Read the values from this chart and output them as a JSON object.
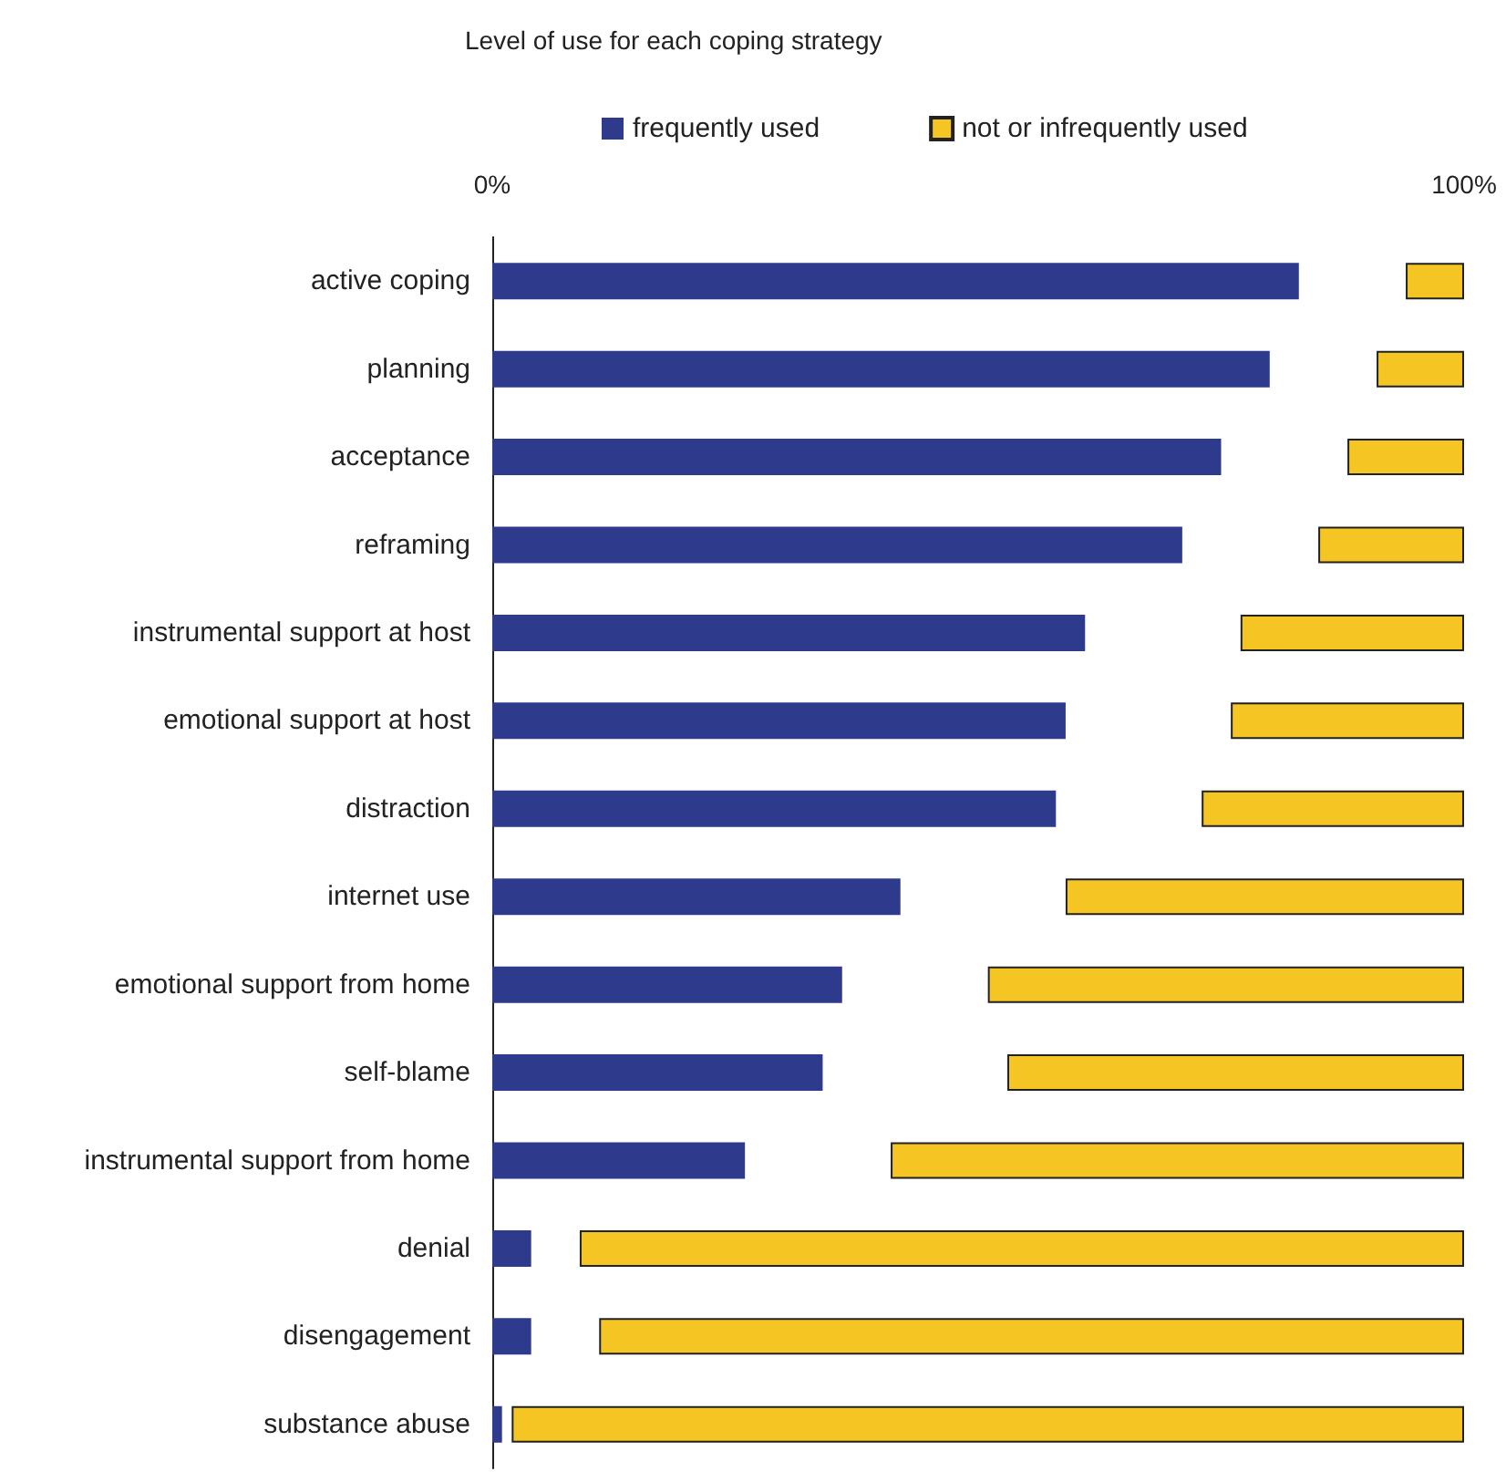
{
  "chart_data": {
    "type": "bar",
    "orientation": "horizontal",
    "stacked": false,
    "title": "Level of use for each coping strategy",
    "categories": [
      "active coping",
      "planning",
      "acceptance",
      "reframing",
      "instrumental support at host",
      "emotional support at host",
      "distraction",
      "internet use",
      "emotional support from home",
      "self-blame",
      "instrumental support from home",
      "denial",
      "disengagement",
      "substance abuse"
    ],
    "series": [
      {
        "name": "frequently used",
        "color": "#2e3a8c",
        "base": [
          0,
          0,
          0,
          0,
          0,
          0,
          0,
          0,
          0,
          0,
          0,
          0,
          0,
          0
        ],
        "values": [
          83,
          80,
          75,
          71,
          61,
          59,
          58,
          42,
          36,
          34,
          26,
          4,
          4,
          1
        ]
      },
      {
        "name": "not or infrequently used",
        "color": "#f5c523",
        "base": [
          94,
          91,
          88,
          85,
          77,
          76,
          73,
          59,
          51,
          53,
          41,
          9,
          11,
          2
        ],
        "values": [
          6,
          9,
          12,
          15,
          23,
          24,
          27,
          41,
          49,
          47,
          59,
          91,
          89,
          98
        ]
      }
    ],
    "xlim": [
      0,
      100
    ],
    "xticks": [
      {
        "value": 0,
        "label": "0%"
      },
      {
        "value": 100,
        "label": "100%"
      }
    ],
    "grid": false,
    "legend": "top"
  }
}
